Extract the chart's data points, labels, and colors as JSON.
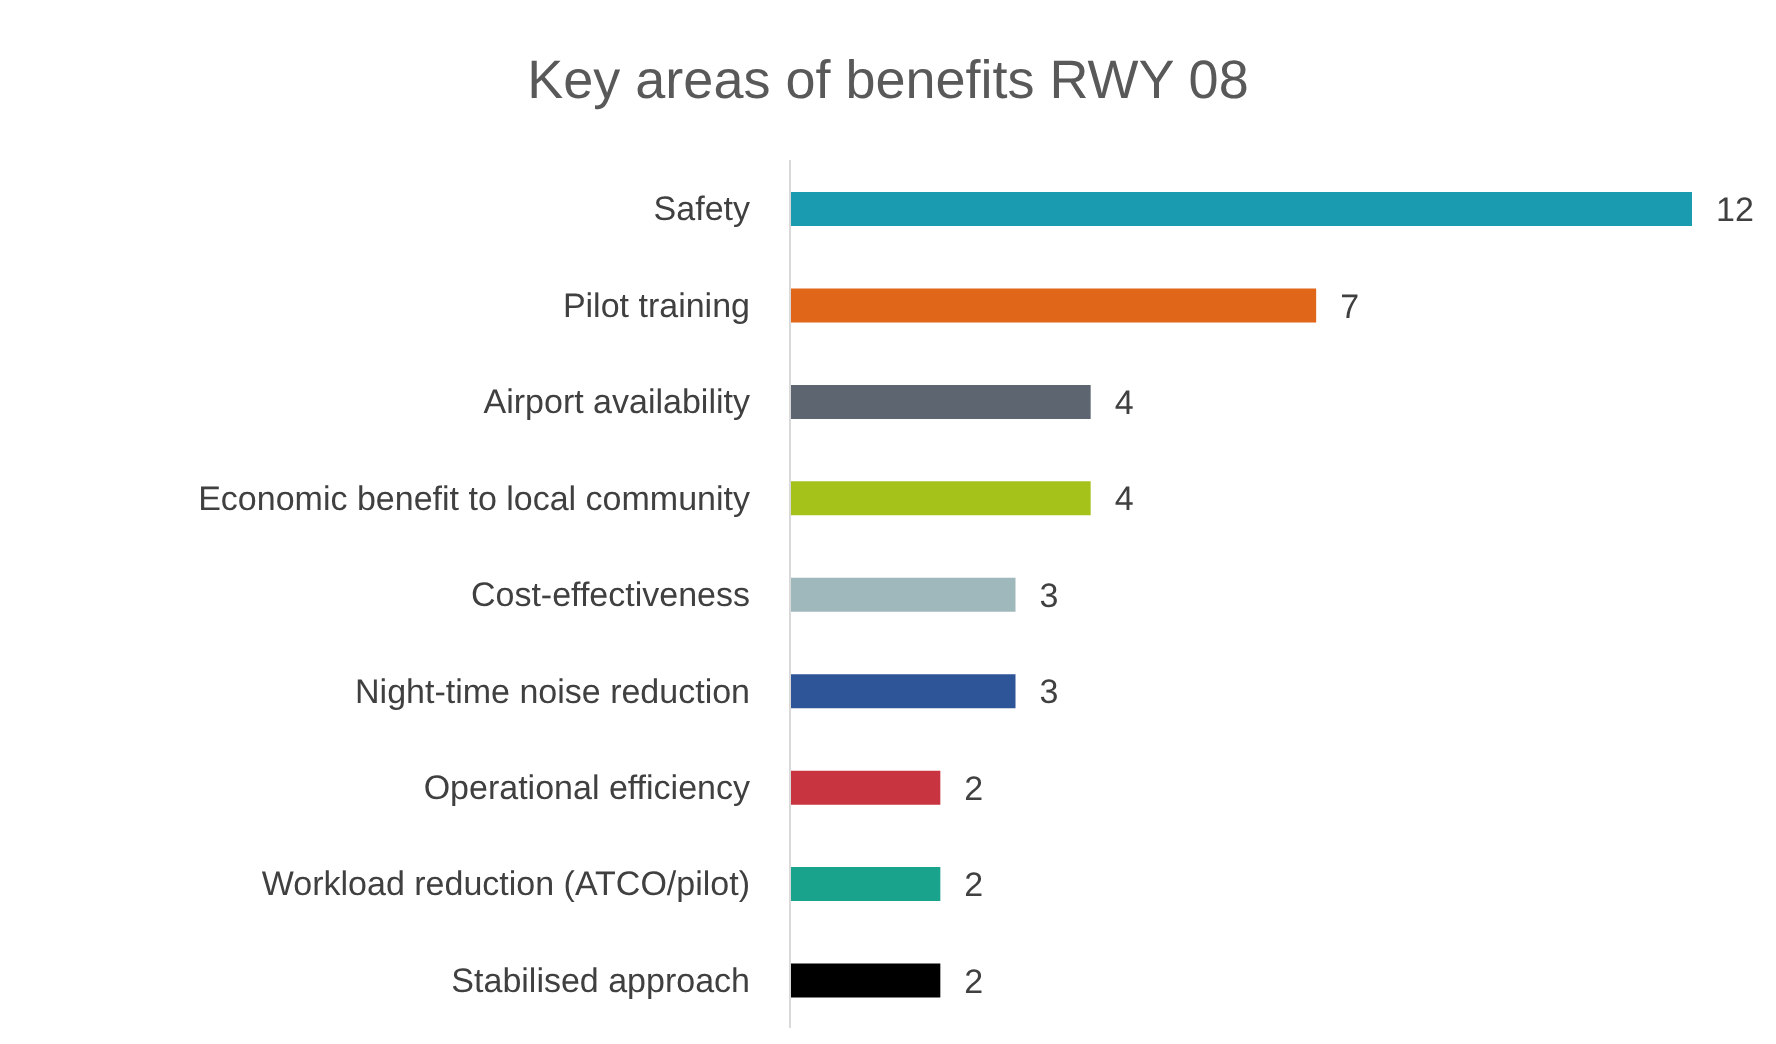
{
  "chart_data": {
    "type": "bar",
    "orientation": "horizontal",
    "title": "Key areas of benefits RWY 08",
    "categories": [
      "Safety",
      "Pilot training",
      "Airport availability",
      "Economic benefit to local community",
      "Cost-effectiveness",
      "Night-time noise reduction",
      "Operational efficiency",
      "Workload reduction (ATCO/pilot)",
      "Stabilised approach"
    ],
    "values": [
      12,
      7,
      4,
      4,
      3,
      3,
      2,
      2,
      2
    ],
    "colors": [
      "#1a9bb0",
      "#e0661a",
      "#5d6670",
      "#a5c21a",
      "#9fb8bb",
      "#2e5597",
      "#c83440",
      "#1aa38c",
      "#000000"
    ],
    "data_labels": true
  }
}
